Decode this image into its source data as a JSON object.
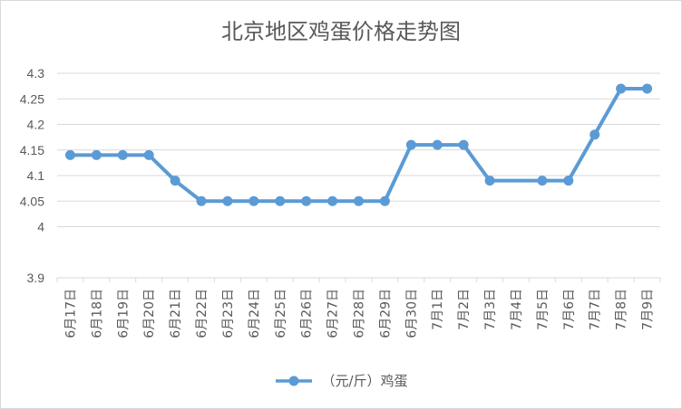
{
  "chart_data": {
    "type": "line",
    "title": "北京地区鸡蛋价格走势图",
    "xlabel": "",
    "ylabel": "",
    "categories": [
      "6月17日",
      "6月18日",
      "6月19日",
      "6月20日",
      "6月21日",
      "6月22日",
      "6月23日",
      "6月24日",
      "6月25日",
      "6月26日",
      "6月27日",
      "6月28日",
      "6月29日",
      "6月30日",
      "7月1日",
      "7月2日",
      "7月3日",
      "7月4日",
      "7月5日",
      "7月6日",
      "7月7日",
      "7月8日",
      "7月9日"
    ],
    "series": [
      {
        "name": "（元/斤）鸡蛋",
        "values": [
          4.14,
          4.14,
          4.14,
          4.14,
          4.09,
          4.05,
          4.05,
          4.05,
          4.05,
          4.05,
          4.05,
          4.05,
          4.05,
          4.16,
          4.16,
          4.16,
          4.09,
          null,
          4.09,
          4.09,
          4.18,
          4.27,
          4.27
        ]
      }
    ],
    "ylim": [
      3.9,
      4.3
    ],
    "yticks": [
      "3.9",
      "4",
      "4.05",
      "4.1",
      "4.15",
      "4.2",
      "4.25",
      "4.3"
    ],
    "grid": true,
    "legend_position": "bottom",
    "colors": {
      "series": "#5b9bd5",
      "grid": "#d9d9d9",
      "text": "#595959"
    }
  }
}
